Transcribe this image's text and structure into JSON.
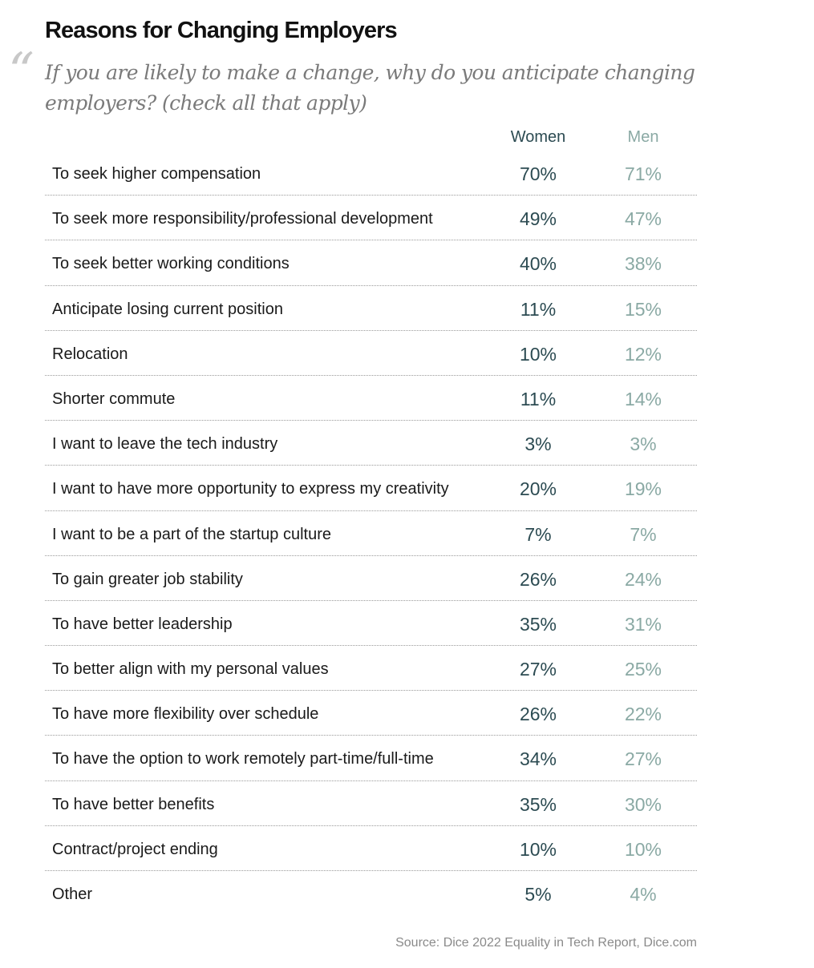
{
  "header": {
    "title": "Reasons for Changing Employers",
    "quote_glyph": "“",
    "subtitle": "If you are likely to make a change, why do you anticipate changing employers? (check all that apply)"
  },
  "chart_data": {
    "type": "table",
    "title": "Reasons for Changing Employers",
    "subtitle": "If you are likely to make a change, why do you anticipate changing employers? (check all that apply)",
    "columns": [
      "Women",
      "Men"
    ],
    "rows": [
      {
        "label": "To seek higher compensation",
        "women": "70%",
        "men": "71%"
      },
      {
        "label": "To seek more responsibility/professional development",
        "women": "49%",
        "men": "47%"
      },
      {
        "label": "To seek better working conditions",
        "women": "40%",
        "men": "38%"
      },
      {
        "label": "Anticipate losing current position",
        "women": "11%",
        "men": "15%"
      },
      {
        "label": "Relocation",
        "women": "10%",
        "men": "12%"
      },
      {
        "label": "Shorter commute",
        "women": "11%",
        "men": "14%"
      },
      {
        "label": "I want to leave the tech industry",
        "women": "3%",
        "men": "3%"
      },
      {
        "label": "I want to have more opportunity to express my creativity",
        "women": "20%",
        "men": "19%"
      },
      {
        "label": "I want to be a part of the startup culture",
        "women": "7%",
        "men": "7%"
      },
      {
        "label": "To gain greater job stability",
        "women": "26%",
        "men": "24%"
      },
      {
        "label": "To have better leadership",
        "women": "35%",
        "men": "31%"
      },
      {
        "label": "To better align with my personal values",
        "women": "27%",
        "men": "25%"
      },
      {
        "label": "To have more flexibility over schedule",
        "women": "26%",
        "men": "22%"
      },
      {
        "label": "To have the option to work remotely part-time/full-time",
        "women": "34%",
        "men": "27%"
      },
      {
        "label": "To have better benefits",
        "women": "35%",
        "men": "30%"
      },
      {
        "label": "Contract/project ending",
        "women": "10%",
        "men": "10%"
      },
      {
        "label": "Other",
        "women": "5%",
        "men": "4%"
      }
    ],
    "colors": {
      "women": "#2c4b52",
      "men": "#8aa9a4"
    }
  },
  "footer": {
    "source": "Source: Dice 2022 Equality in Tech Report, Dice.com"
  }
}
